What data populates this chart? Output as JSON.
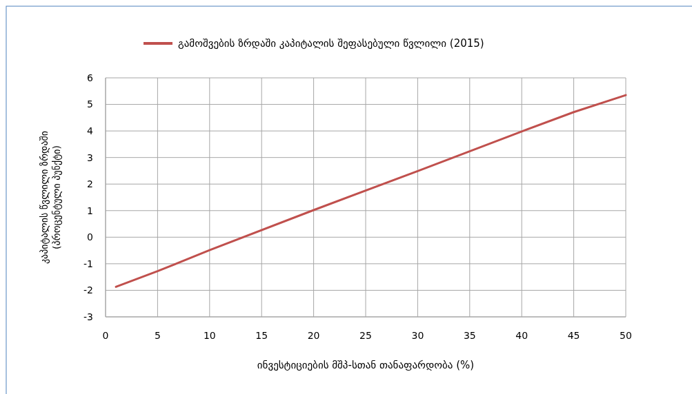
{
  "chart_data": {
    "type": "line",
    "xlabel": "ინვესტიციების მშპ-სთან თანაფარდობა (%)",
    "ylabel": "კაპიტალის წვლილი ზრდაში\n(პროცენტული პუნქტი)",
    "series": [
      {
        "name": "გამოშვების ზრდაში კაპიტალის შეფასებული წვლილი (2015)",
        "color": "#c0504d",
        "x": [
          1,
          5,
          10,
          20,
          30,
          40,
          45,
          50
        ],
        "values": [
          -1.87,
          -1.28,
          -0.49,
          1.02,
          2.49,
          3.98,
          4.71,
          5.35
        ]
      }
    ],
    "xlim": [
      0,
      50
    ],
    "xticks": [
      0,
      5,
      10,
      15,
      20,
      25,
      30,
      35,
      40,
      45,
      50
    ],
    "ylim": [
      -3,
      6
    ],
    "yticks": [
      -3,
      -2,
      -1,
      0,
      1,
      2,
      3,
      4,
      5,
      6
    ],
    "grid": true,
    "legend": "top",
    "marker": "none",
    "line_style": "solid"
  }
}
